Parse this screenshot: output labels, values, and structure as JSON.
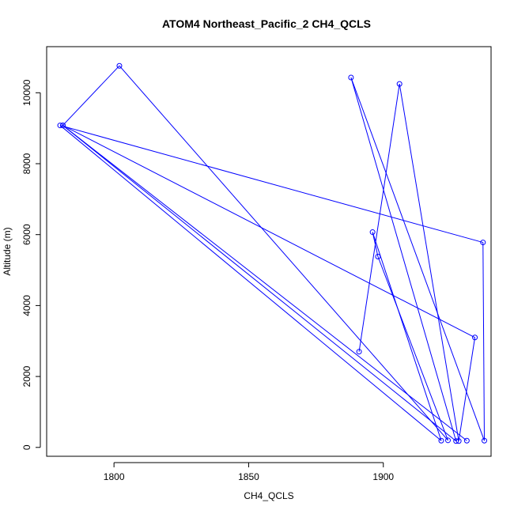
{
  "chart_data": {
    "type": "line",
    "title": "ATOM4 Northeast_Pacific_2 CH4_QCLS",
    "xlabel": "CH4_QCLS",
    "ylabel": "Altitude (m)",
    "xlim": [
      1775,
      1940
    ],
    "ylim": [
      -250,
      11300
    ],
    "x_ticks": [
      1800,
      1850,
      1900
    ],
    "y_ticks": [
      0,
      2000,
      4000,
      6000,
      8000,
      10000
    ],
    "grid": false,
    "legend": "none",
    "series": [
      {
        "color": "#0000ff",
        "marker": "open-circle",
        "points": [
          [
            1891,
            2700
          ],
          [
            1906,
            10250
          ],
          [
            1928,
            180
          ],
          [
            1934,
            3100
          ],
          [
            1781,
            9080
          ],
          [
            1802,
            10760
          ],
          [
            1924,
            200
          ],
          [
            1898,
            5380
          ],
          [
            1896,
            6070
          ],
          [
            1921.5,
            190
          ],
          [
            1780,
            9080
          ],
          [
            1937,
            5780
          ],
          [
            1937.5,
            190
          ],
          [
            1888,
            10430
          ],
          [
            1927,
            180
          ],
          [
            1781,
            9080
          ],
          [
            1931,
            190
          ]
        ]
      }
    ]
  }
}
